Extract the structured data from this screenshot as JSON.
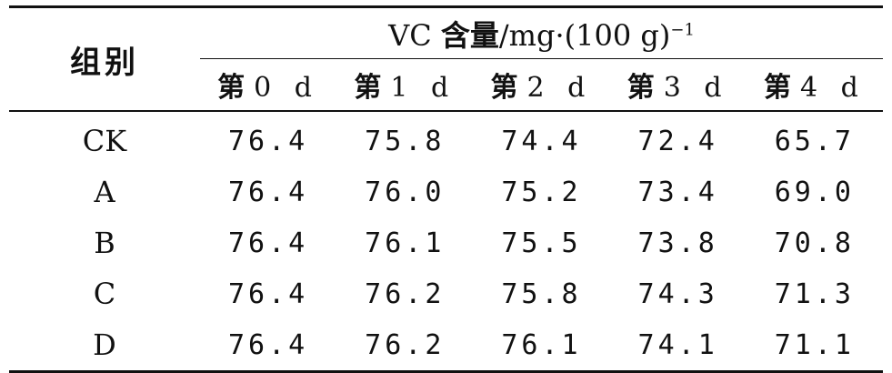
{
  "table": {
    "group_header": "组别",
    "measure_header": {
      "prefix": "VC",
      "label": "含量",
      "unit": "/mg·(100 g)",
      "exponent": "−1"
    },
    "day_headers": [
      {
        "cn": "第",
        "num": "0 d"
      },
      {
        "cn": "第",
        "num": "1 d"
      },
      {
        "cn": "第",
        "num": "2 d"
      },
      {
        "cn": "第",
        "num": "3 d"
      },
      {
        "cn": "第",
        "num": "4 d"
      }
    ],
    "rows": [
      {
        "group": "CK",
        "values": [
          "76.4",
          "75.8",
          "74.4",
          "72.4",
          "65.7"
        ]
      },
      {
        "group": "A",
        "values": [
          "76.4",
          "76.0",
          "75.2",
          "73.4",
          "69.0"
        ]
      },
      {
        "group": "B",
        "values": [
          "76.4",
          "76.1",
          "75.5",
          "73.8",
          "70.8"
        ]
      },
      {
        "group": "C",
        "values": [
          "76.4",
          "76.2",
          "75.8",
          "74.3",
          "71.3"
        ]
      },
      {
        "group": "D",
        "values": [
          "76.4",
          "76.2",
          "76.1",
          "74.1",
          "71.1"
        ]
      }
    ]
  }
}
